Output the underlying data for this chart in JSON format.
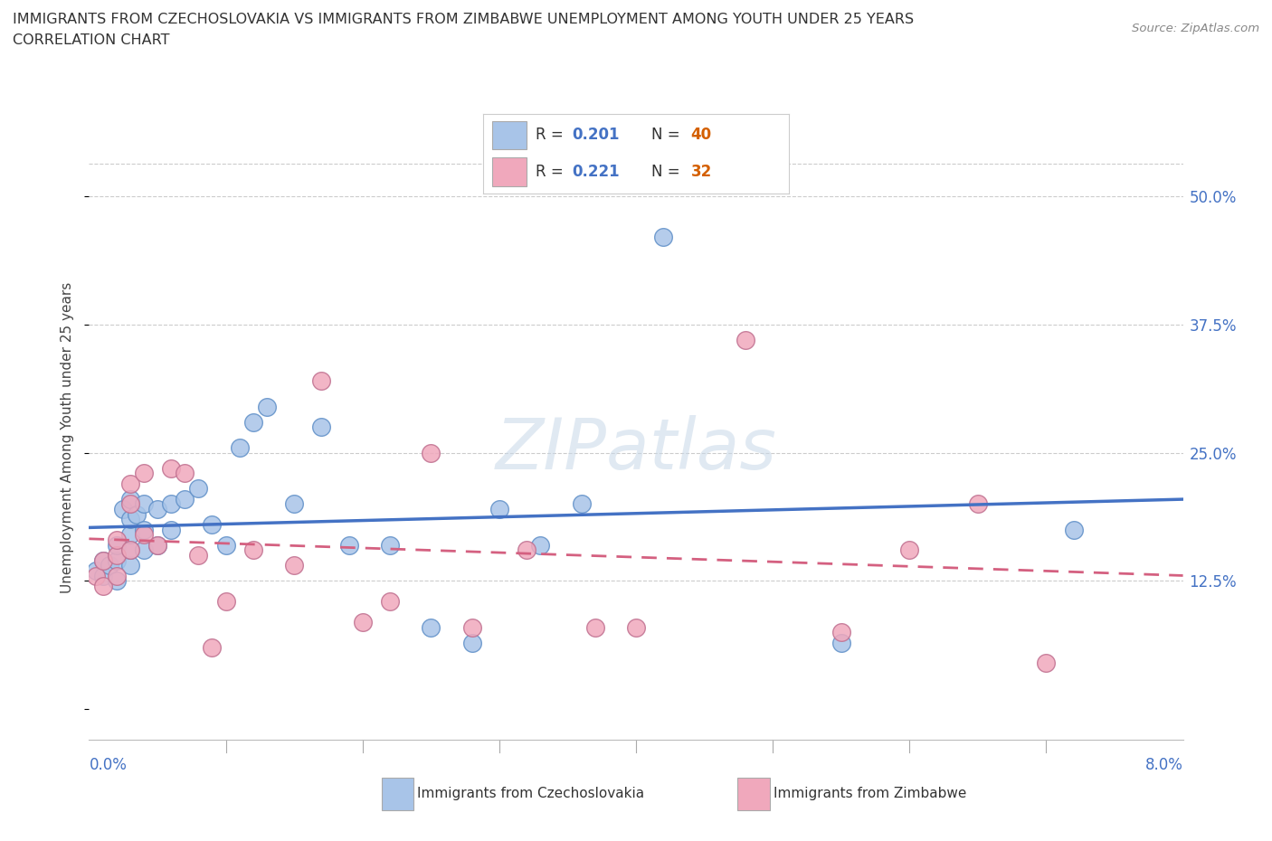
{
  "title_line1": "IMMIGRANTS FROM CZECHOSLOVAKIA VS IMMIGRANTS FROM ZIMBABWE UNEMPLOYMENT AMONG YOUTH UNDER 25 YEARS",
  "title_line2": "CORRELATION CHART",
  "source": "Source: ZipAtlas.com",
  "ylabel": "Unemployment Among Youth under 25 years",
  "ytick_vals": [
    0.0,
    0.125,
    0.25,
    0.375,
    0.5
  ],
  "ytick_labels": [
    "",
    "12.5%",
    "25.0%",
    "37.5%",
    "50.0%"
  ],
  "xmin": 0.0,
  "xmax": 0.08,
  "ymin": -0.03,
  "ymax": 0.56,
  "watermark": "ZIPatlas",
  "legend_blue_r": "0.201",
  "legend_blue_n": "40",
  "legend_pink_r": "0.221",
  "legend_pink_n": "32",
  "color_blue": "#a8c4e8",
  "color_pink": "#f0a8bc",
  "color_blue_line": "#4472c4",
  "color_pink_line": "#d46080",
  "blue_x": [
    0.0005,
    0.001,
    0.001,
    0.0015,
    0.002,
    0.002,
    0.002,
    0.0025,
    0.003,
    0.003,
    0.003,
    0.003,
    0.003,
    0.0035,
    0.004,
    0.004,
    0.004,
    0.005,
    0.005,
    0.006,
    0.006,
    0.007,
    0.008,
    0.009,
    0.01,
    0.011,
    0.012,
    0.013,
    0.015,
    0.017,
    0.019,
    0.022,
    0.025,
    0.028,
    0.03,
    0.033,
    0.036,
    0.042,
    0.055,
    0.072
  ],
  "blue_y": [
    0.135,
    0.13,
    0.145,
    0.14,
    0.125,
    0.145,
    0.16,
    0.195,
    0.14,
    0.155,
    0.17,
    0.185,
    0.205,
    0.19,
    0.155,
    0.175,
    0.2,
    0.16,
    0.195,
    0.175,
    0.2,
    0.205,
    0.215,
    0.18,
    0.16,
    0.255,
    0.28,
    0.295,
    0.2,
    0.275,
    0.16,
    0.16,
    0.08,
    0.065,
    0.195,
    0.16,
    0.2,
    0.46,
    0.065,
    0.175
  ],
  "pink_x": [
    0.0005,
    0.001,
    0.001,
    0.002,
    0.002,
    0.002,
    0.003,
    0.003,
    0.003,
    0.004,
    0.004,
    0.005,
    0.006,
    0.007,
    0.008,
    0.009,
    0.01,
    0.012,
    0.015,
    0.017,
    0.02,
    0.022,
    0.025,
    0.028,
    0.032,
    0.037,
    0.04,
    0.048,
    0.055,
    0.06,
    0.065,
    0.07
  ],
  "pink_y": [
    0.13,
    0.12,
    0.145,
    0.13,
    0.15,
    0.165,
    0.155,
    0.2,
    0.22,
    0.17,
    0.23,
    0.16,
    0.235,
    0.23,
    0.15,
    0.06,
    0.105,
    0.155,
    0.14,
    0.32,
    0.085,
    0.105,
    0.25,
    0.08,
    0.155,
    0.08,
    0.08,
    0.36,
    0.075,
    0.155,
    0.2,
    0.045
  ]
}
